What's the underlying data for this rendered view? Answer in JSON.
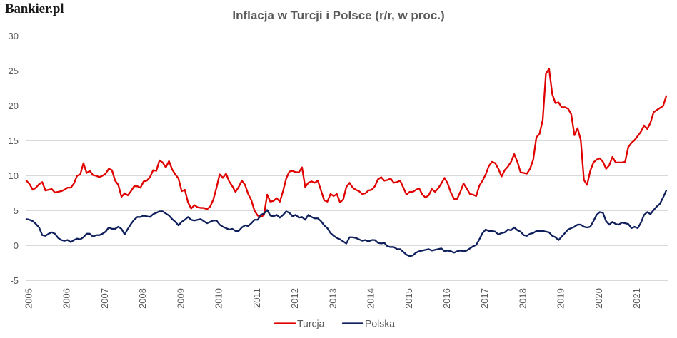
{
  "logo": {
    "text": "Bankier.pl"
  },
  "chart_data": {
    "type": "line",
    "title": "Inflacja w Turcji i Polsce (r/r, w proc.)",
    "x": [
      "2005-01",
      "2005-02",
      "2005-03",
      "2005-04",
      "2005-05",
      "2005-06",
      "2005-07",
      "2005-08",
      "2005-09",
      "2005-10",
      "2005-11",
      "2005-12",
      "2006-01",
      "2006-02",
      "2006-03",
      "2006-04",
      "2006-05",
      "2006-06",
      "2006-07",
      "2006-08",
      "2006-09",
      "2006-10",
      "2006-11",
      "2006-12",
      "2007-01",
      "2007-02",
      "2007-03",
      "2007-04",
      "2007-05",
      "2007-06",
      "2007-07",
      "2007-08",
      "2007-09",
      "2007-10",
      "2007-11",
      "2007-12",
      "2008-01",
      "2008-02",
      "2008-03",
      "2008-04",
      "2008-05",
      "2008-06",
      "2008-07",
      "2008-08",
      "2008-09",
      "2008-10",
      "2008-11",
      "2008-12",
      "2009-01",
      "2009-02",
      "2009-03",
      "2009-04",
      "2009-05",
      "2009-06",
      "2009-07",
      "2009-08",
      "2009-09",
      "2009-10",
      "2009-11",
      "2009-12",
      "2010-01",
      "2010-02",
      "2010-03",
      "2010-04",
      "2010-05",
      "2010-06",
      "2010-07",
      "2010-08",
      "2010-09",
      "2010-10",
      "2010-11",
      "2010-12",
      "2011-01",
      "2011-02",
      "2011-03",
      "2011-04",
      "2011-05",
      "2011-06",
      "2011-07",
      "2011-08",
      "2011-09",
      "2011-10",
      "2011-11",
      "2011-12",
      "2012-01",
      "2012-02",
      "2012-03",
      "2012-04",
      "2012-05",
      "2012-06",
      "2012-07",
      "2012-08",
      "2012-09",
      "2012-10",
      "2012-11",
      "2012-12",
      "2013-01",
      "2013-02",
      "2013-03",
      "2013-04",
      "2013-05",
      "2013-06",
      "2013-07",
      "2013-08",
      "2013-09",
      "2013-10",
      "2013-11",
      "2013-12",
      "2014-01",
      "2014-02",
      "2014-03",
      "2014-04",
      "2014-05",
      "2014-06",
      "2014-07",
      "2014-08",
      "2014-09",
      "2014-10",
      "2014-11",
      "2014-12",
      "2015-01",
      "2015-02",
      "2015-03",
      "2015-04",
      "2015-05",
      "2015-06",
      "2015-07",
      "2015-08",
      "2015-09",
      "2015-10",
      "2015-11",
      "2015-12",
      "2016-01",
      "2016-02",
      "2016-03",
      "2016-04",
      "2016-05",
      "2016-06",
      "2016-07",
      "2016-08",
      "2016-09",
      "2016-10",
      "2016-11",
      "2016-12",
      "2017-01",
      "2017-02",
      "2017-03",
      "2017-04",
      "2017-05",
      "2017-06",
      "2017-07",
      "2017-08",
      "2017-09",
      "2017-10",
      "2017-11",
      "2017-12",
      "2018-01",
      "2018-02",
      "2018-03",
      "2018-04",
      "2018-05",
      "2018-06",
      "2018-07",
      "2018-08",
      "2018-09",
      "2018-10",
      "2018-11",
      "2018-12",
      "2019-01",
      "2019-02",
      "2019-03",
      "2019-04",
      "2019-05",
      "2019-06",
      "2019-07",
      "2019-08",
      "2019-09",
      "2019-10",
      "2019-11",
      "2019-12",
      "2020-01",
      "2020-02",
      "2020-03",
      "2020-04",
      "2020-05",
      "2020-06",
      "2020-07",
      "2020-08",
      "2020-09",
      "2020-10",
      "2020-11",
      "2020-12",
      "2021-01",
      "2021-02",
      "2021-03",
      "2021-04",
      "2021-05",
      "2021-06",
      "2021-07",
      "2021-08",
      "2021-09",
      "2021-10",
      "2021-11"
    ],
    "xticks": [
      "2005",
      "2006",
      "2007",
      "2008",
      "2009",
      "2010",
      "2011",
      "2012",
      "2013",
      "2014",
      "2015",
      "2016",
      "2017",
      "2018",
      "2019",
      "2020",
      "2021"
    ],
    "yticks": [
      "30",
      "25",
      "20",
      "15",
      "10",
      "5",
      "0",
      "-5"
    ],
    "ylim": [
      -5,
      30
    ],
    "grid": true,
    "legend": "bottom",
    "series": [
      {
        "name": "Turcja",
        "color": "#e00000",
        "values": [
          9.2,
          8.7,
          7.9,
          8.2,
          8.7,
          9.0,
          7.8,
          7.9,
          8.0,
          7.5,
          7.6,
          7.7,
          7.9,
          8.2,
          8.2,
          8.8,
          9.9,
          10.1,
          11.7,
          10.3,
          10.6,
          10.0,
          9.9,
          9.7,
          9.9,
          10.2,
          10.9,
          10.7,
          9.2,
          8.6,
          6.9,
          7.4,
          7.1,
          7.7,
          8.4,
          8.4,
          8.2,
          9.1,
          9.2,
          9.7,
          10.7,
          10.6,
          12.1,
          11.8,
          11.1,
          12.0,
          10.8,
          10.1,
          9.5,
          7.7,
          7.9,
          6.1,
          5.2,
          5.7,
          5.4,
          5.3,
          5.3,
          5.1,
          5.5,
          6.5,
          8.2,
          10.1,
          9.6,
          10.2,
          9.1,
          8.4,
          7.6,
          8.3,
          9.2,
          8.6,
          7.3,
          6.4,
          4.9,
          4.2,
          4.0,
          4.3,
          7.2,
          6.2,
          6.3,
          6.7,
          6.2,
          7.7,
          9.5,
          10.5,
          10.6,
          10.4,
          10.4,
          11.1,
          8.3,
          8.9,
          9.1,
          8.9,
          9.2,
          7.8,
          6.4,
          6.2,
          7.3,
          7.0,
          7.3,
          6.1,
          6.5,
          8.3,
          8.9,
          8.2,
          7.9,
          7.7,
          7.3,
          7.4,
          7.8,
          7.9,
          8.4,
          9.4,
          9.7,
          9.2,
          9.3,
          9.5,
          8.9,
          9.0,
          9.2,
          8.2,
          7.2,
          7.6,
          7.6,
          7.9,
          8.1,
          7.2,
          6.8,
          7.1,
          8.0,
          7.6,
          8.1,
          8.8,
          9.6,
          8.8,
          7.5,
          6.6,
          6.6,
          7.6,
          8.8,
          8.1,
          7.3,
          7.2,
          7.0,
          8.5,
          9.2,
          10.1,
          11.3,
          11.9,
          11.7,
          10.9,
          9.8,
          10.7,
          11.2,
          11.9,
          13.0,
          11.9,
          10.4,
          10.3,
          10.2,
          10.9,
          12.2,
          15.4,
          15.9,
          17.9,
          24.5,
          25.2,
          21.6,
          20.3,
          20.4,
          19.7,
          19.7,
          19.5,
          18.7,
          15.7,
          16.7,
          15.0,
          9.3,
          8.6,
          10.6,
          11.8,
          12.2,
          12.4,
          11.9,
          10.9,
          11.4,
          12.6,
          11.8,
          11.8,
          11.8,
          11.9,
          14.0,
          14.6,
          15.0,
          15.6,
          16.2,
          17.1,
          16.6,
          17.5,
          19.0,
          19.3,
          19.6,
          19.9,
          21.3
        ]
      },
      {
        "name": "Polska",
        "color": "#0f1f5c",
        "values": [
          3.7,
          3.6,
          3.4,
          3.0,
          2.5,
          1.4,
          1.3,
          1.6,
          1.8,
          1.6,
          1.0,
          0.7,
          0.6,
          0.7,
          0.4,
          0.7,
          0.9,
          0.8,
          1.1,
          1.6,
          1.6,
          1.2,
          1.4,
          1.4,
          1.6,
          1.9,
          2.5,
          2.3,
          2.3,
          2.6,
          2.3,
          1.5,
          2.3,
          3.0,
          3.6,
          4.0,
          4.0,
          4.2,
          4.1,
          4.0,
          4.4,
          4.6,
          4.8,
          4.8,
          4.5,
          4.2,
          3.7,
          3.3,
          2.8,
          3.3,
          3.6,
          4.0,
          3.6,
          3.5,
          3.6,
          3.7,
          3.4,
          3.1,
          3.3,
          3.5,
          3.5,
          2.9,
          2.6,
          2.4,
          2.2,
          2.3,
          2.0,
          2.0,
          2.5,
          2.8,
          2.7,
          3.1,
          3.6,
          3.6,
          4.3,
          4.5,
          5.0,
          4.2,
          4.1,
          4.3,
          3.9,
          4.3,
          4.8,
          4.6,
          4.1,
          4.3,
          3.9,
          4.0,
          3.6,
          4.3,
          4.0,
          3.8,
          3.8,
          3.4,
          2.8,
          2.4,
          1.7,
          1.3,
          1.0,
          0.8,
          0.5,
          0.2,
          1.1,
          1.1,
          1.0,
          0.8,
          0.6,
          0.7,
          0.5,
          0.7,
          0.7,
          0.3,
          0.2,
          0.3,
          -0.2,
          -0.3,
          -0.3,
          -0.6,
          -0.6,
          -1.0,
          -1.4,
          -1.6,
          -1.5,
          -1.1,
          -0.9,
          -0.8,
          -0.7,
          -0.6,
          -0.8,
          -0.7,
          -0.6,
          -0.5,
          -0.9,
          -0.8,
          -0.9,
          -1.1,
          -0.9,
          -0.8,
          -0.9,
          -0.8,
          -0.5,
          -0.2,
          0.0,
          0.8,
          1.7,
          2.2,
          2.0,
          2.0,
          1.9,
          1.5,
          1.7,
          1.8,
          2.2,
          2.1,
          2.5,
          2.1,
          1.9,
          1.4,
          1.3,
          1.6,
          1.7,
          2.0,
          2.0,
          2.0,
          1.9,
          1.8,
          1.3,
          1.1,
          0.7,
          1.2,
          1.7,
          2.2,
          2.4,
          2.6,
          2.9,
          2.9,
          2.6,
          2.5,
          2.6,
          3.4,
          4.3,
          4.7,
          4.6,
          3.4,
          2.9,
          3.3,
          3.0,
          2.9,
          3.2,
          3.1,
          3.0,
          2.4,
          2.6,
          2.4,
          3.2,
          4.3,
          4.7,
          4.4,
          5.0,
          5.5,
          5.9,
          6.8,
          7.8
        ]
      }
    ]
  }
}
